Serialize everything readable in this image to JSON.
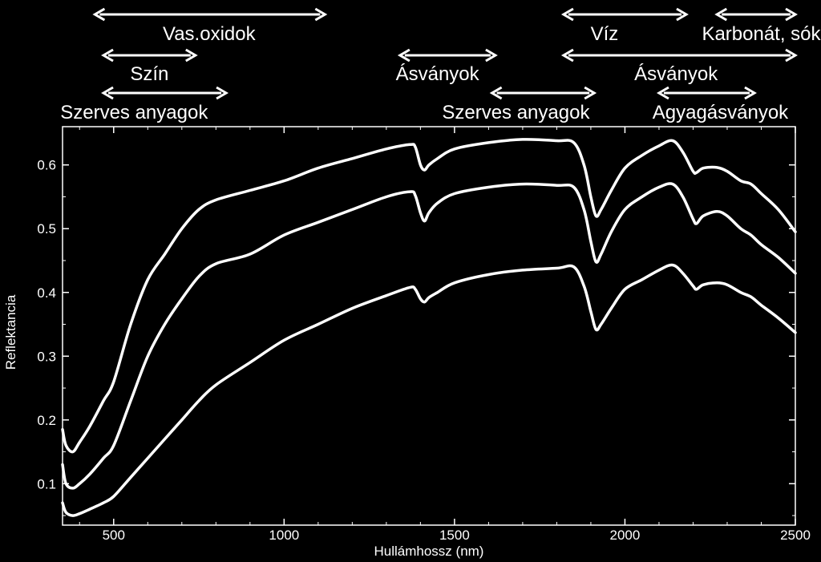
{
  "chart_data": {
    "type": "line",
    "title": "",
    "xlabel": "Hullámhossz (nm)",
    "ylabel": "Reflektancia",
    "xlim": [
      350,
      2500
    ],
    "ylim": [
      0.035,
      0.66
    ],
    "xticks": [
      500,
      1000,
      1500,
      2000,
      2500
    ],
    "yticks": [
      0.1,
      0.2,
      0.3,
      0.4,
      0.5,
      0.6
    ],
    "xtick_labels": [
      "500",
      "1000",
      "1500",
      "2000",
      "2500"
    ],
    "ytick_labels": [
      "0.1",
      "0.2",
      "0.3",
      "0.4",
      "0.5",
      "0.6"
    ],
    "grid": false,
    "background": "#000000",
    "line_color": "#ffffff",
    "series": [
      {
        "x": [
          350,
          360,
          380,
          400,
          430,
          470,
          500,
          550,
          600,
          650,
          700,
          750,
          800,
          900,
          1000,
          1100,
          1200,
          1300,
          1370,
          1385,
          1400,
          1412,
          1425,
          1450,
          1500,
          1600,
          1700,
          1800,
          1850,
          1880,
          1900,
          1915,
          1930,
          1960,
          2000,
          2050,
          2100,
          2140,
          2170,
          2200,
          2210,
          2230,
          2270,
          2300,
          2340,
          2370,
          2400,
          2450,
          2500
        ],
        "y": [
          0.185,
          0.16,
          0.15,
          0.165,
          0.19,
          0.23,
          0.26,
          0.35,
          0.42,
          0.46,
          0.5,
          0.53,
          0.545,
          0.56,
          0.575,
          0.595,
          0.61,
          0.625,
          0.632,
          0.628,
          0.6,
          0.592,
          0.6,
          0.61,
          0.625,
          0.635,
          0.64,
          0.638,
          0.635,
          0.6,
          0.55,
          0.52,
          0.53,
          0.56,
          0.595,
          0.615,
          0.63,
          0.638,
          0.62,
          0.59,
          0.588,
          0.595,
          0.596,
          0.59,
          0.575,
          0.57,
          0.555,
          0.53,
          0.495
        ]
      },
      {
        "x": [
          350,
          360,
          380,
          400,
          430,
          470,
          500,
          550,
          600,
          650,
          700,
          750,
          800,
          900,
          1000,
          1100,
          1200,
          1300,
          1370,
          1385,
          1400,
          1412,
          1425,
          1450,
          1500,
          1600,
          1700,
          1800,
          1850,
          1880,
          1900,
          1915,
          1930,
          1960,
          2000,
          2050,
          2100,
          2140,
          2170,
          2200,
          2210,
          2230,
          2270,
          2300,
          2340,
          2370,
          2400,
          2450,
          2500
        ],
        "y": [
          0.13,
          0.1,
          0.093,
          0.1,
          0.115,
          0.14,
          0.16,
          0.23,
          0.3,
          0.35,
          0.39,
          0.425,
          0.445,
          0.46,
          0.49,
          0.51,
          0.53,
          0.55,
          0.558,
          0.552,
          0.525,
          0.512,
          0.525,
          0.54,
          0.555,
          0.565,
          0.57,
          0.568,
          0.565,
          0.53,
          0.48,
          0.448,
          0.46,
          0.495,
          0.53,
          0.55,
          0.565,
          0.57,
          0.55,
          0.515,
          0.508,
          0.52,
          0.527,
          0.52,
          0.5,
          0.49,
          0.475,
          0.455,
          0.43
        ]
      },
      {
        "x": [
          350,
          360,
          380,
          400,
          430,
          470,
          500,
          550,
          600,
          650,
          700,
          750,
          800,
          900,
          1000,
          1100,
          1200,
          1300,
          1370,
          1385,
          1400,
          1412,
          1425,
          1450,
          1500,
          1600,
          1700,
          1800,
          1850,
          1880,
          1900,
          1915,
          1930,
          1960,
          2000,
          2050,
          2100,
          2140,
          2170,
          2200,
          2210,
          2230,
          2270,
          2300,
          2340,
          2370,
          2400,
          2450,
          2500
        ],
        "y": [
          0.07,
          0.055,
          0.05,
          0.053,
          0.06,
          0.07,
          0.08,
          0.11,
          0.14,
          0.17,
          0.2,
          0.23,
          0.255,
          0.29,
          0.325,
          0.35,
          0.375,
          0.395,
          0.408,
          0.405,
          0.39,
          0.385,
          0.392,
          0.4,
          0.415,
          0.428,
          0.435,
          0.438,
          0.44,
          0.41,
          0.37,
          0.342,
          0.35,
          0.375,
          0.405,
          0.42,
          0.435,
          0.443,
          0.43,
          0.41,
          0.405,
          0.412,
          0.415,
          0.412,
          0.4,
          0.393,
          0.38,
          0.36,
          0.337
        ]
      }
    ],
    "annotations": [
      {
        "text": "Vas.oxidok",
        "x_start": 445,
        "x_end": 1120,
        "level": 1,
        "text_x": 780
      },
      {
        "text": "Szín",
        "x_start": 470,
        "x_end": 740,
        "level": 2,
        "text_x": 605
      },
      {
        "text": "Szerves anyagok",
        "x_start": 470,
        "x_end": 830,
        "level": 3,
        "text_x": 560
      },
      {
        "text": "Ásványok",
        "x_start": 1340,
        "x_end": 1620,
        "level": 2,
        "text_x": 1450
      },
      {
        "text": "Szerves anyagok",
        "x_start": 1610,
        "x_end": 1910,
        "level": 3,
        "text_x": 1680
      },
      {
        "text": "Víz",
        "x_start": 1820,
        "x_end": 2180,
        "level": 1,
        "text_x": 1940
      },
      {
        "text": "Ásványok",
        "x_start": 1820,
        "x_end": 2500,
        "level": 2,
        "text_x": 2150
      },
      {
        "text": "Agyagásványok",
        "x_start": 2100,
        "x_end": 2380,
        "level": 3,
        "text_x": 2280
      },
      {
        "text": "Karbonát, sók",
        "x_start": 2270,
        "x_end": 2500,
        "level": 1,
        "text_x": 2400
      }
    ]
  }
}
